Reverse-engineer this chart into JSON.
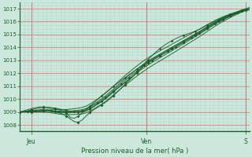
{
  "bg_color": "#cce8dc",
  "grid_color_major_h": "#e08080",
  "grid_color_major_v": "#c08080",
  "grid_color_minor": "#b8d8cc",
  "line_color": "#1a5c2a",
  "marker_color": "#1a5c2a",
  "title": "Pression niveau de la mer( hPa )",
  "xlabel_jeu": "Jeu",
  "xlabel_ven": "Ven",
  "xlabel_sam": "S",
  "ylim": [
    1007.5,
    1017.5
  ],
  "yticks": [
    1008,
    1009,
    1010,
    1011,
    1012,
    1013,
    1014,
    1015,
    1016,
    1017
  ],
  "xlim": [
    0,
    260
  ],
  "jeu_x": 13,
  "ven_x": 143,
  "sam_x": 255
}
